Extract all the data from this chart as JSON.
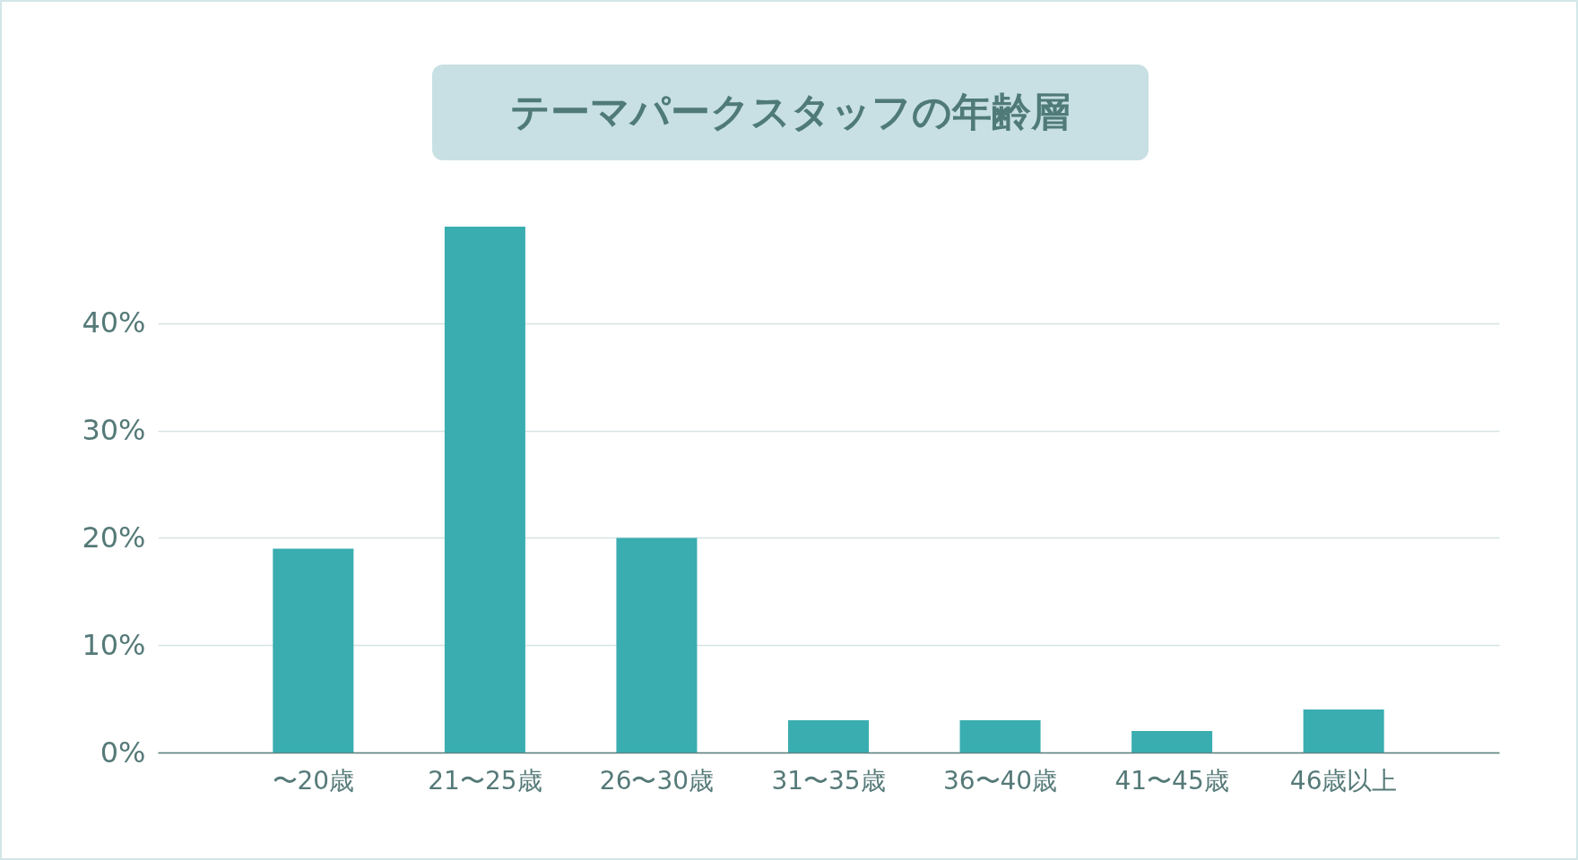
{
  "chart_data": {
    "type": "bar",
    "title": "テーマパークスタッフの年齢層",
    "categories": [
      "〜20歳",
      "21〜25歳",
      "26〜30歳",
      "31〜35歳",
      "36〜40歳",
      "41〜45歳",
      "46歳以上"
    ],
    "values": [
      19,
      49,
      20,
      3,
      3,
      2,
      4
    ],
    "color": "#3aadb0",
    "ylim": [
      0,
      49
    ],
    "yticks": [
      {
        "value": 0,
        "label": "0%"
      },
      {
        "value": 10,
        "label": "10%"
      },
      {
        "value": 20,
        "label": "20%"
      },
      {
        "value": 30,
        "label": "30%"
      },
      {
        "value": 40,
        "label": "40%"
      }
    ],
    "grid": "y"
  }
}
